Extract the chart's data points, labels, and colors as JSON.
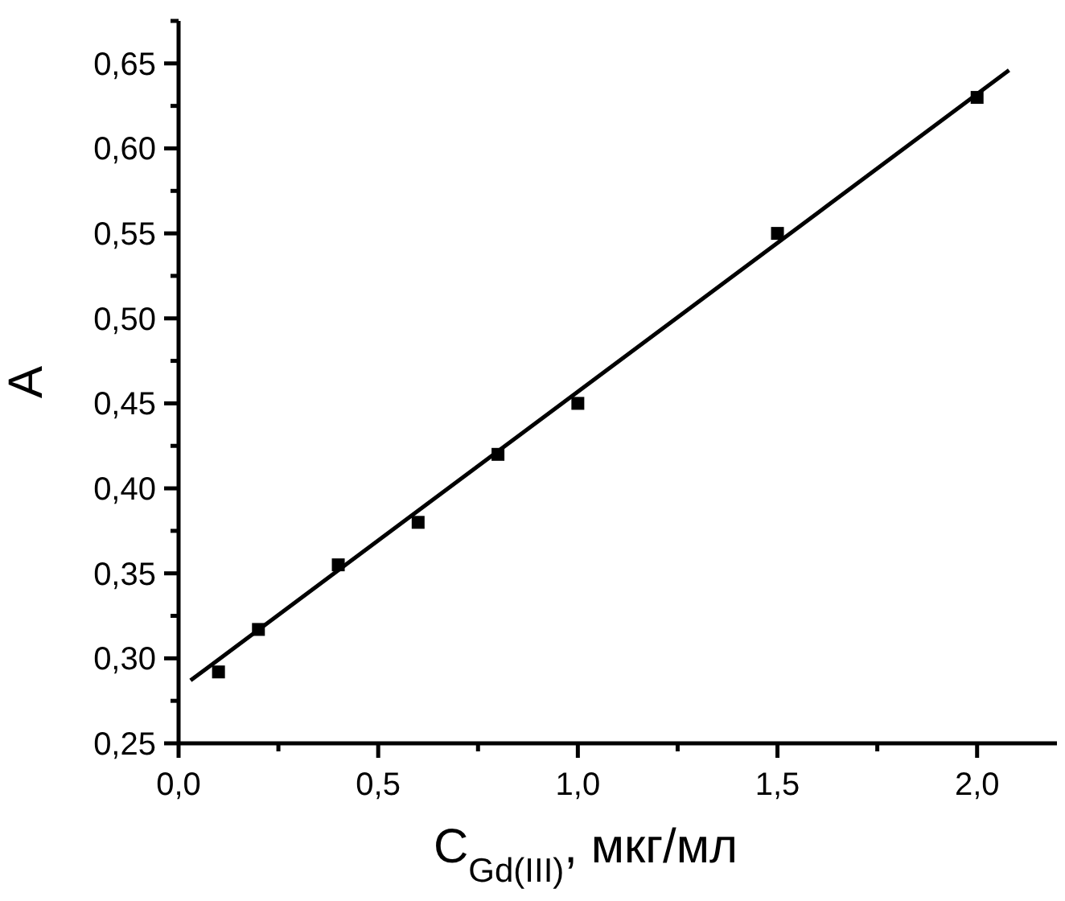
{
  "chart_data": {
    "type": "scatter",
    "xlabel": "C$_{Gd(III)}$, мкг/мл",
    "ylabel": "A",
    "x": [
      0.1,
      0.2,
      0.4,
      0.6,
      0.8,
      1.0,
      1.5,
      2.0
    ],
    "series": [
      {
        "color": "#000000",
        "marker": "square",
        "values": [
          0.292,
          0.317,
          0.355,
          0.38,
          0.42,
          0.45,
          0.55,
          0.63
        ]
      },
      {
        "type": "line",
        "color": "#000000",
        "marker": "none",
        "line_style": "solid",
        "x": [
          0.03,
          2.08
        ],
        "values": [
          0.287,
          0.646
        ]
      }
    ],
    "xlim": [
      0,
      2.2
    ],
    "xticks": [
      {
        "value": 0,
        "label": "0,0"
      },
      {
        "value": 0.25,
        "label": null
      },
      {
        "value": 0.5,
        "label": "0,5"
      },
      {
        "value": 0.75,
        "label": null
      },
      {
        "value": 1.0,
        "label": "1,0"
      },
      {
        "value": 1.25,
        "label": null
      },
      {
        "value": 1.5,
        "label": "1,5"
      },
      {
        "value": 1.75,
        "label": null
      },
      {
        "value": 2.0,
        "label": "2,0"
      }
    ],
    "ylim": [
      0.25,
      0.675
    ],
    "yticks": [
      {
        "value": 0.25,
        "label": "0,25"
      },
      {
        "value": 0.275,
        "label": null
      },
      {
        "value": 0.3,
        "label": "0,30"
      },
      {
        "value": 0.325,
        "label": null
      },
      {
        "value": 0.35,
        "label": "0,35"
      },
      {
        "value": 0.375,
        "label": null
      },
      {
        "value": 0.4,
        "label": "0,40"
      },
      {
        "value": 0.425,
        "label": null
      },
      {
        "value": 0.45,
        "label": "0,45"
      },
      {
        "value": 0.475,
        "label": null
      },
      {
        "value": 0.5,
        "label": "0,50"
      },
      {
        "value": 0.525,
        "label": null
      },
      {
        "value": 0.55,
        "label": "0,55"
      },
      {
        "value": 0.575,
        "label": null
      },
      {
        "value": 0.6,
        "label": "0,60"
      },
      {
        "value": 0.625,
        "label": null
      },
      {
        "value": 0.65,
        "label": "0,65"
      },
      {
        "value": 0.675,
        "label": null
      }
    ],
    "grid": false,
    "legend": false
  }
}
